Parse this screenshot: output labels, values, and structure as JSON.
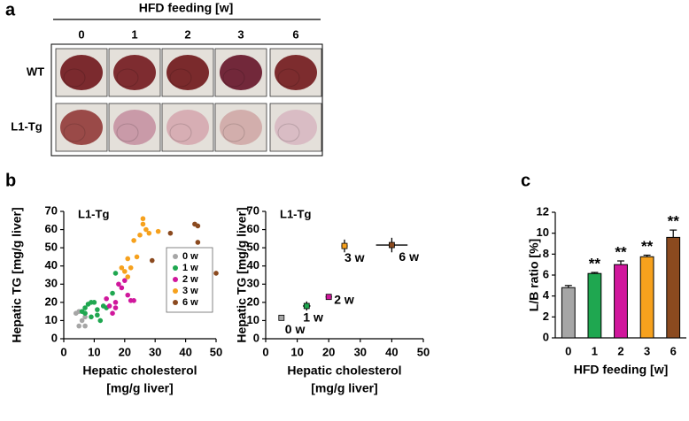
{
  "panel_labels": [
    "a",
    "b",
    "c"
  ],
  "photo_grid": {
    "title": "HFD feeding [w]",
    "columns": [
      "0",
      "1",
      "2",
      "3",
      "6"
    ],
    "rows": [
      "WT",
      "L1-Tg"
    ]
  },
  "chart_data": [
    {
      "type": "scatter",
      "title": "L1-Tg",
      "xlabel": [
        "Hepatic cholesterol",
        "[mg/g liver]"
      ],
      "ylabel": "Hepatic TG [mg/g liver]",
      "xlim": [
        0,
        50
      ],
      "xticks": [
        0,
        10,
        20,
        30,
        40,
        50
      ],
      "ylim": [
        0,
        70
      ],
      "yticks": [
        0,
        10,
        20,
        30,
        40,
        50,
        60,
        70
      ],
      "legend": "lower right",
      "series": [
        {
          "name": "0 w",
          "color": "#a6a6a6",
          "x": [
            4,
            5,
            5,
            6,
            7,
            7
          ],
          "y": [
            14,
            15,
            7,
            10,
            7,
            12
          ]
        },
        {
          "name": "1 w",
          "color": "#1fa750",
          "x": [
            6,
            7,
            7,
            8,
            9,
            9,
            10,
            11,
            11,
            12,
            13,
            14,
            16,
            17
          ],
          "y": [
            15,
            17,
            14,
            19,
            20,
            12,
            20,
            16,
            13,
            10,
            18,
            17,
            25,
            36
          ]
        },
        {
          "name": "2 w",
          "color": "#d0179c",
          "x": [
            14,
            15,
            16,
            17,
            17,
            18,
            19,
            20,
            21,
            22,
            23
          ],
          "y": [
            22,
            18,
            14,
            20,
            17,
            30,
            28,
            32,
            24,
            21,
            21
          ]
        },
        {
          "name": "3 w",
          "color": "#f6a11d",
          "x": [
            19,
            20,
            21,
            21,
            22,
            23,
            24,
            25,
            26,
            26,
            27,
            28,
            31
          ],
          "y": [
            39,
            37,
            44,
            34,
            39,
            54,
            45,
            57,
            66,
            63,
            60,
            58,
            59
          ]
        },
        {
          "name": "6 w",
          "color": "#8b4a1f",
          "x": [
            29,
            35,
            36,
            43,
            44,
            44,
            50
          ],
          "y": [
            43,
            58,
            44,
            63,
            53,
            62,
            36
          ]
        }
      ]
    },
    {
      "type": "scatter",
      "title": "L1-Tg",
      "xlabel": [
        "Hepatic cholesterol",
        "[mg/g liver]"
      ],
      "ylabel": "Hepatic TG [mg/g liver]",
      "xlim": [
        0,
        50
      ],
      "xticks": [
        0,
        10,
        20,
        30,
        40,
        50
      ],
      "ylim": [
        0,
        70
      ],
      "yticks": [
        0,
        10,
        20,
        30,
        40,
        50,
        60,
        70
      ],
      "point_labels": true,
      "series": [
        {
          "name": "0 w",
          "color": "#a6a6a6",
          "x": [
            5
          ],
          "y": [
            11.5
          ],
          "x_errors": [
            0.6
          ],
          "y_errors": [
            1
          ]
        },
        {
          "name": "1 w",
          "color": "#1fa750",
          "x": [
            13
          ],
          "y": [
            18
          ],
          "x_errors": [
            1.2
          ],
          "y_errors": [
            2.5
          ]
        },
        {
          "name": "2 w",
          "color": "#d0179c",
          "x": [
            20
          ],
          "y": [
            23
          ],
          "x_errors": [
            1
          ],
          "y_errors": [
            1
          ]
        },
        {
          "name": "3 w",
          "color": "#f6a11d",
          "x": [
            25
          ],
          "y": [
            51
          ],
          "x_errors": [
            1
          ],
          "y_errors": [
            3.5
          ]
        },
        {
          "name": "6 w",
          "color": "#8b4a1f",
          "x": [
            40
          ],
          "y": [
            51.5
          ],
          "x_errors": [
            5
          ],
          "y_errors": [
            4
          ]
        }
      ]
    },
    {
      "type": "bar",
      "ylabel": "L/B ratio [%]",
      "xlabel": "HFD feeding [w]",
      "categories": [
        "0",
        "1",
        "2",
        "3",
        "6"
      ],
      "values": [
        4.8,
        6.15,
        7.0,
        7.75,
        9.6
      ],
      "errors": [
        0.2,
        0.1,
        0.35,
        0.15,
        0.7
      ],
      "colors": [
        "#a6a6a6",
        "#1fa750",
        "#d0179c",
        "#f6a11d",
        "#8b4a1f"
      ],
      "annotations": [
        null,
        "**",
        "**",
        "**",
        "**"
      ],
      "ylim": [
        0,
        12
      ],
      "yticks": [
        0,
        2,
        4,
        6,
        8,
        10,
        12
      ]
    }
  ]
}
